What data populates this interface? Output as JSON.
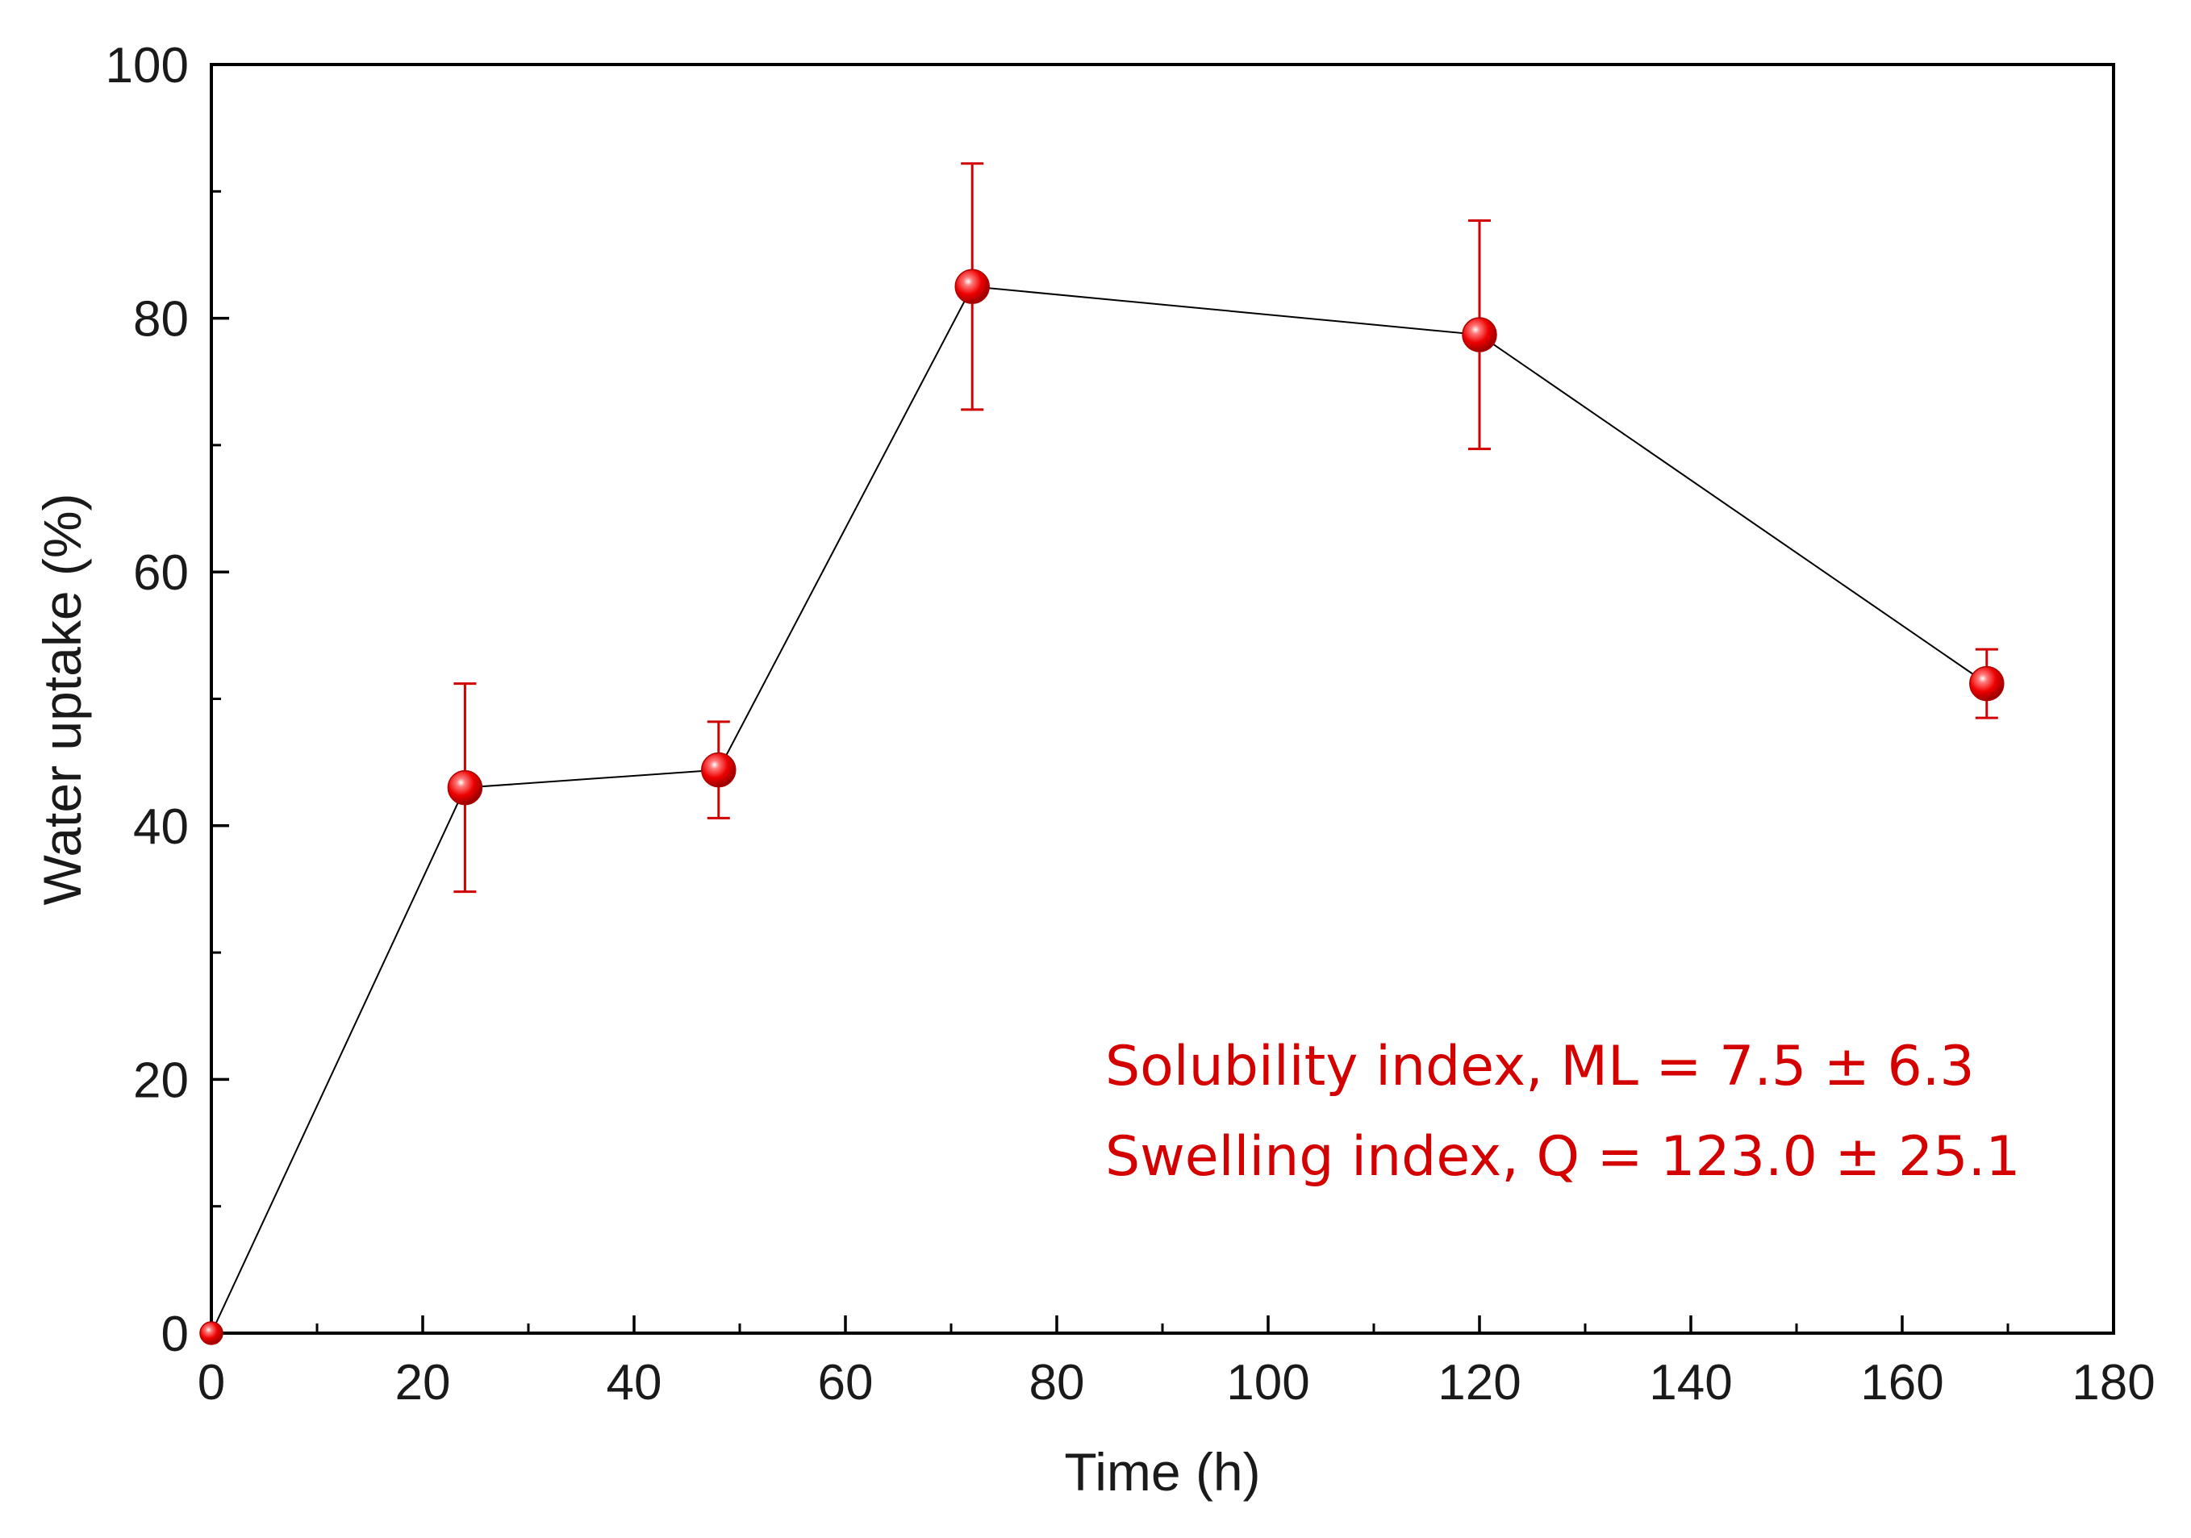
{
  "chart_data": {
    "type": "line",
    "title": "",
    "xlabel": "Time (h)",
    "ylabel": "Water uptake (%)",
    "xlim": [
      0,
      180
    ],
    "ylim": [
      0,
      100
    ],
    "x_ticks": [
      0,
      20,
      40,
      60,
      80,
      100,
      120,
      140,
      160,
      180
    ],
    "x_tick_labels": [
      "0",
      "20",
      "40",
      "60",
      "80",
      "100",
      "120",
      "140",
      "160",
      "180"
    ],
    "y_ticks": [
      0,
      20,
      40,
      60,
      80,
      100
    ],
    "y_tick_labels": [
      "0",
      "20",
      "40",
      "60",
      "80",
      "100"
    ],
    "grid": false,
    "series": [
      {
        "name": "Water uptake",
        "x": [
          0,
          24,
          48,
          72,
          120,
          168
        ],
        "y": [
          0,
          43.0,
          44.4,
          82.5,
          78.7,
          51.2
        ],
        "error": [
          0,
          8.2,
          3.8,
          9.7,
          9.0,
          2.7
        ],
        "line_color": "#000000",
        "marker_color": "#ee0000",
        "error_color": "#d10000"
      }
    ],
    "annotations": [
      "Solubility index, ML = 7.5 ± 6.3",
      "Swelling index, Q = 123.0 ± 25.1"
    ],
    "annotation_color": "#d40000"
  }
}
